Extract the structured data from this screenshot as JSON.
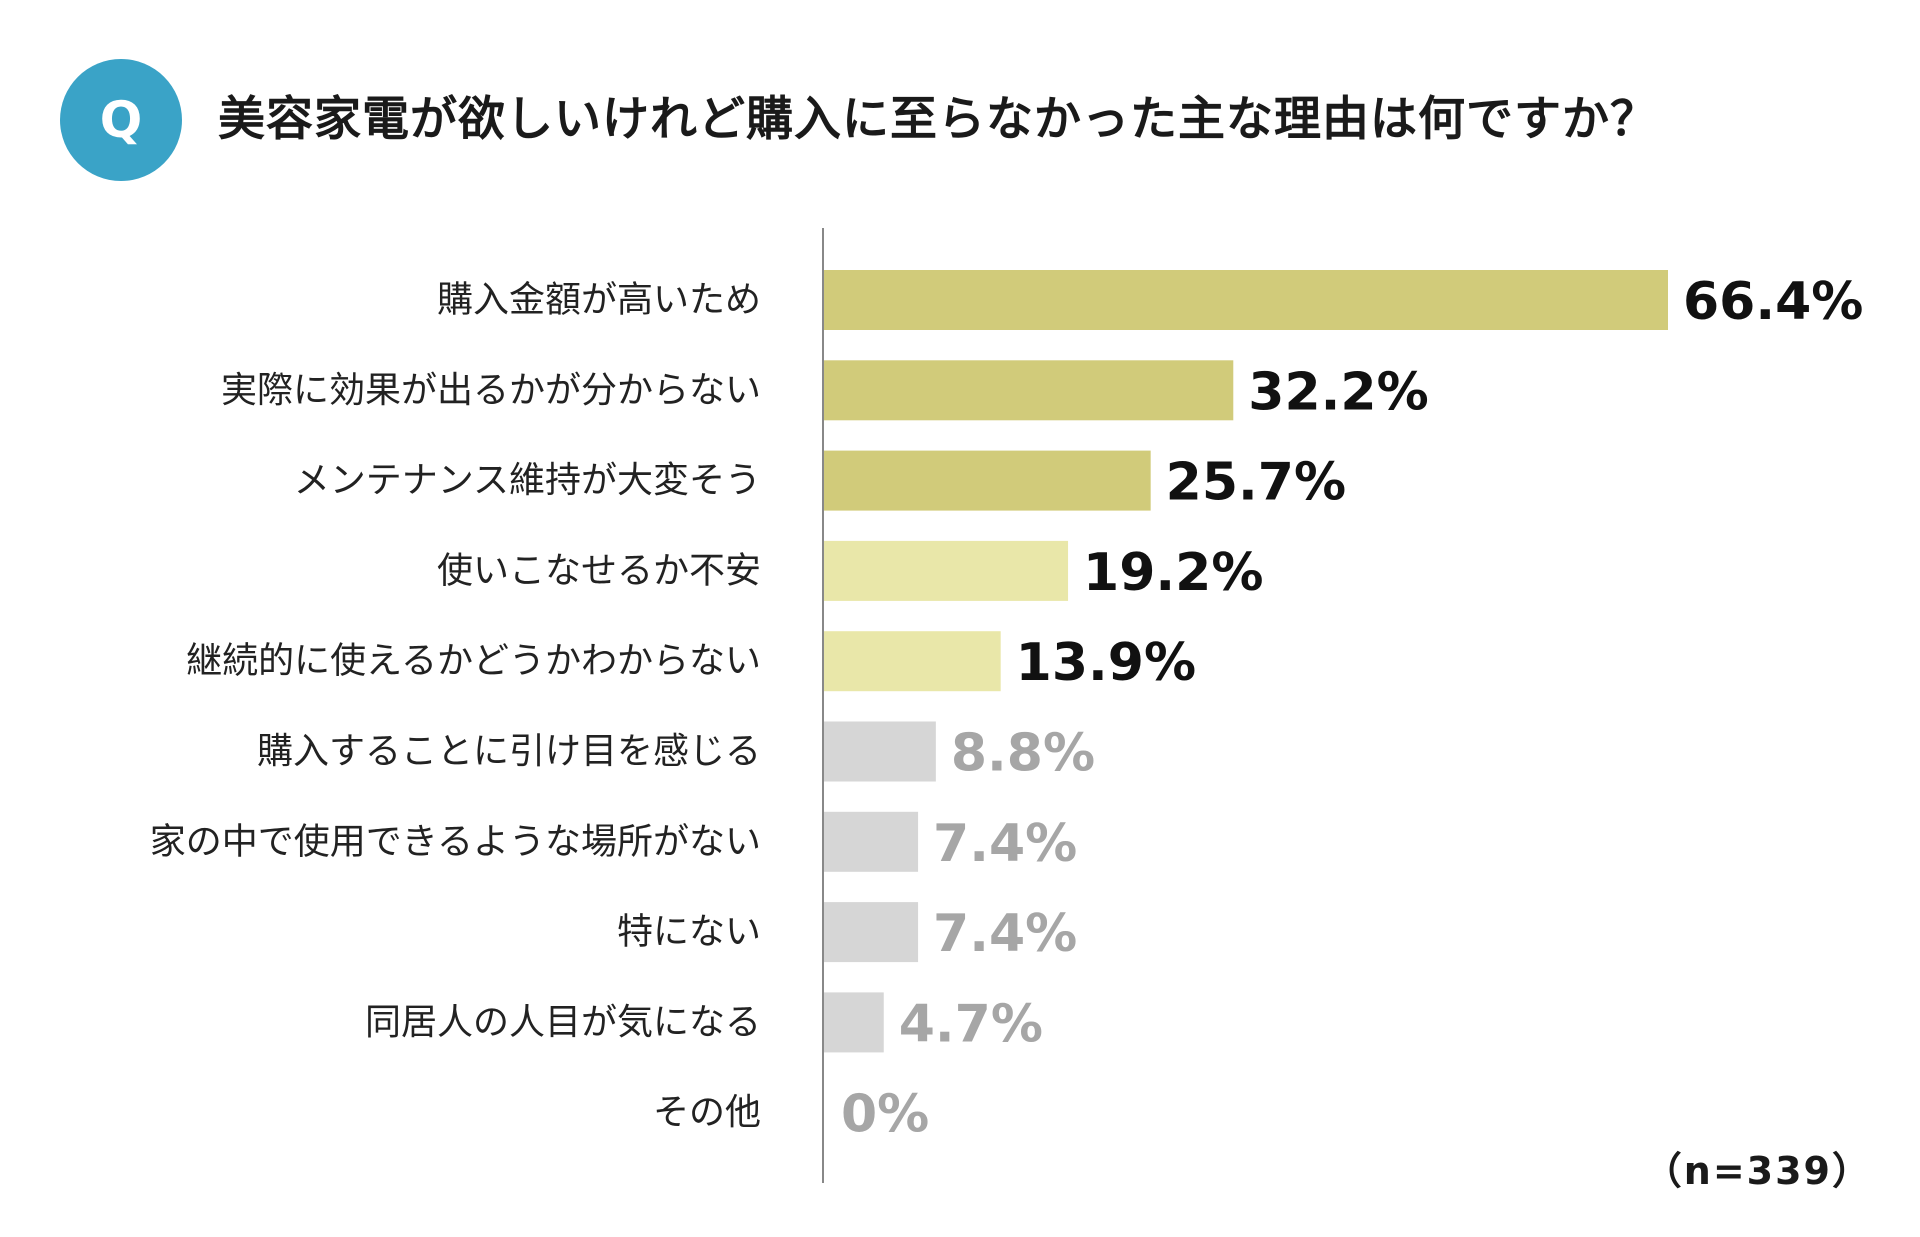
{
  "question": {
    "badge": "Q",
    "title": "美容家電が欲しいけれど購入に至らなかった主な理由は何ですか？"
  },
  "sample_note": "（n=339）",
  "colors": {
    "badge": "#3aa3c7",
    "bar_top": "#d1cb7a",
    "bar_mid": "#e9e7a9",
    "bar_low": "#d6d6d6",
    "value_dark": "#111111",
    "value_light": "#a6a6a6",
    "axis": "#888888"
  },
  "chart_data": {
    "type": "bar",
    "orientation": "horizontal",
    "categories": [
      "購入金額が高いため",
      "実際に効果が出るかが分からない",
      "メンテナンス維持が大変そう",
      "使いこなせるか不安",
      "継続的に使えるかどうかわからない",
      "購入することに引け目を感じる",
      "家の中で使用できるような場所がない",
      "特にない",
      "同居人の人目が気になる",
      "その他"
    ],
    "values": [
      66.4,
      32.2,
      25.7,
      19.2,
      13.9,
      8.8,
      7.4,
      7.4,
      4.7,
      0
    ],
    "value_labels": [
      "66.4%",
      "32.2%",
      "25.7%",
      "19.2%",
      "13.9%",
      "8.8%",
      "7.4%",
      "7.4%",
      "4.7%",
      "0%"
    ],
    "tiers": [
      "top",
      "top",
      "top",
      "mid",
      "mid",
      "low",
      "low",
      "low",
      "low",
      "low"
    ],
    "xlim": [
      0,
      66.4
    ],
    "grid": false,
    "legend": "none"
  }
}
